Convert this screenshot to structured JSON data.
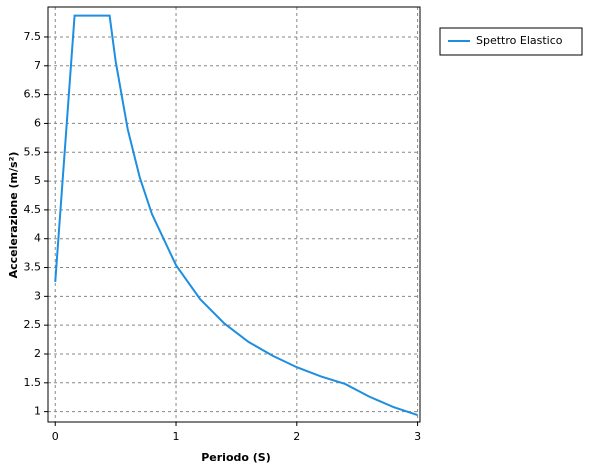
{
  "chart_data": {
    "type": "line",
    "x_label": "Periodo (S)",
    "y_label": "Accelerazione (m/s²)",
    "x": [
      0,
      0.16,
      0.45,
      0.5,
      0.6,
      0.7,
      0.8,
      1.0,
      1.2,
      1.4,
      1.6,
      1.8,
      2.0,
      2.2,
      2.4,
      2.6,
      2.8,
      3.0
    ],
    "series": [
      {
        "name": "Spettro Elastico",
        "color": "#1e8fe0",
        "values": [
          3.25,
          7.87,
          7.87,
          7.08,
          5.9,
          5.06,
          4.43,
          3.54,
          2.95,
          2.53,
          2.21,
          1.97,
          1.77,
          1.61,
          1.48,
          1.26,
          1.08,
          0.94
        ]
      }
    ],
    "xlim": [
      -0.06,
      3.02
    ],
    "ylim": [
      0.82,
      8.02
    ],
    "xticks": [
      0,
      1,
      2,
      3
    ],
    "yticks": [
      1,
      1.5,
      2,
      2.5,
      3,
      3.5,
      4,
      4.5,
      5,
      5.5,
      6,
      6.5,
      7,
      7.5
    ],
    "grid": true,
    "legend": "upper-right"
  }
}
